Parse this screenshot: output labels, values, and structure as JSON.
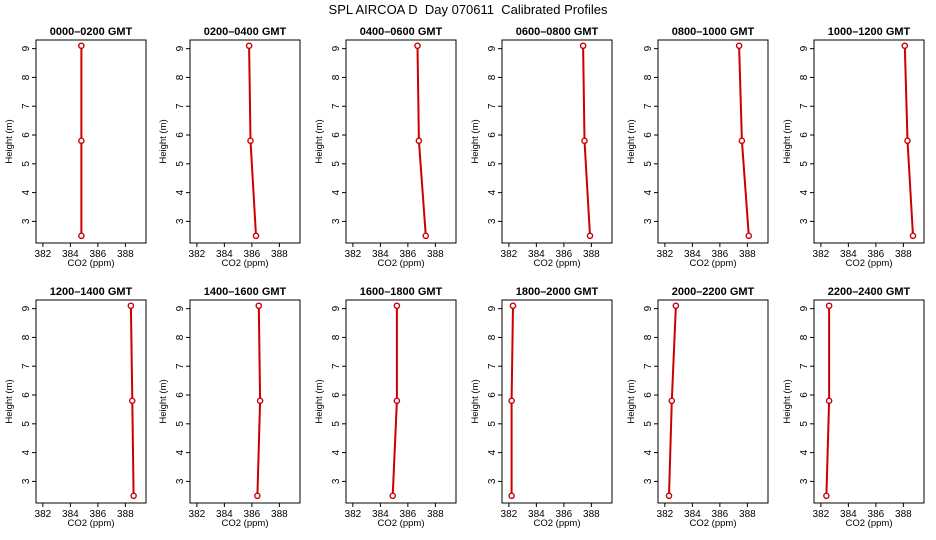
{
  "title": "SPL AIRCOA D  Day 070611  Calibrated Profiles",
  "chart_data": {
    "type": "line",
    "xlabel": "CO2 (ppm)",
    "ylabel": "Height (m)",
    "xlim": [
      381.5,
      389.5
    ],
    "ylim": [
      2.25,
      9.3
    ],
    "xticks": [
      382,
      384,
      386,
      388
    ],
    "yticks": [
      3,
      4,
      5,
      6,
      7,
      8,
      9
    ],
    "series_color": "#cc0000",
    "panels": [
      {
        "title": "0000–0200 GMT",
        "points": [
          {
            "x": 384.8,
            "y": 2.5
          },
          {
            "x": 384.8,
            "y": 5.8
          },
          {
            "x": 384.8,
            "y": 9.1
          }
        ]
      },
      {
        "title": "0200–0400 GMT",
        "points": [
          {
            "x": 386.3,
            "y": 2.5
          },
          {
            "x": 385.9,
            "y": 5.8
          },
          {
            "x": 385.8,
            "y": 9.1
          }
        ]
      },
      {
        "title": "0400–0600 GMT",
        "points": [
          {
            "x": 387.3,
            "y": 2.5
          },
          {
            "x": 386.8,
            "y": 5.8
          },
          {
            "x": 386.7,
            "y": 9.1
          }
        ]
      },
      {
        "title": "0600–0800 GMT",
        "points": [
          {
            "x": 387.9,
            "y": 2.5
          },
          {
            "x": 387.5,
            "y": 5.8
          },
          {
            "x": 387.4,
            "y": 9.1
          }
        ]
      },
      {
        "title": "0800–1000 GMT",
        "points": [
          {
            "x": 388.1,
            "y": 2.5
          },
          {
            "x": 387.6,
            "y": 5.8
          },
          {
            "x": 387.4,
            "y": 9.1
          }
        ]
      },
      {
        "title": "1000–1200 GMT",
        "points": [
          {
            "x": 388.7,
            "y": 2.5
          },
          {
            "x": 388.3,
            "y": 5.8
          },
          {
            "x": 388.1,
            "y": 9.1
          }
        ]
      },
      {
        "title": "1200–1400 GMT",
        "points": [
          {
            "x": 388.6,
            "y": 2.5
          },
          {
            "x": 388.5,
            "y": 5.8
          },
          {
            "x": 388.4,
            "y": 9.1
          }
        ]
      },
      {
        "title": "1400–1600 GMT",
        "points": [
          {
            "x": 386.4,
            "y": 2.5
          },
          {
            "x": 386.6,
            "y": 5.8
          },
          {
            "x": 386.5,
            "y": 9.1
          }
        ]
      },
      {
        "title": "1600–1800 GMT",
        "points": [
          {
            "x": 384.9,
            "y": 2.5
          },
          {
            "x": 385.2,
            "y": 5.8
          },
          {
            "x": 385.2,
            "y": 9.1
          }
        ]
      },
      {
        "title": "1800–2000 GMT",
        "points": [
          {
            "x": 382.2,
            "y": 2.5
          },
          {
            "x": 382.2,
            "y": 5.8
          },
          {
            "x": 382.3,
            "y": 9.1
          }
        ]
      },
      {
        "title": "2000–2200 GMT",
        "points": [
          {
            "x": 382.3,
            "y": 2.5
          },
          {
            "x": 382.5,
            "y": 5.8
          },
          {
            "x": 382.8,
            "y": 9.1
          }
        ]
      },
      {
        "title": "2200–2400 GMT",
        "points": [
          {
            "x": 382.4,
            "y": 2.5
          },
          {
            "x": 382.6,
            "y": 5.8
          },
          {
            "x": 382.6,
            "y": 9.1
          }
        ]
      }
    ]
  }
}
